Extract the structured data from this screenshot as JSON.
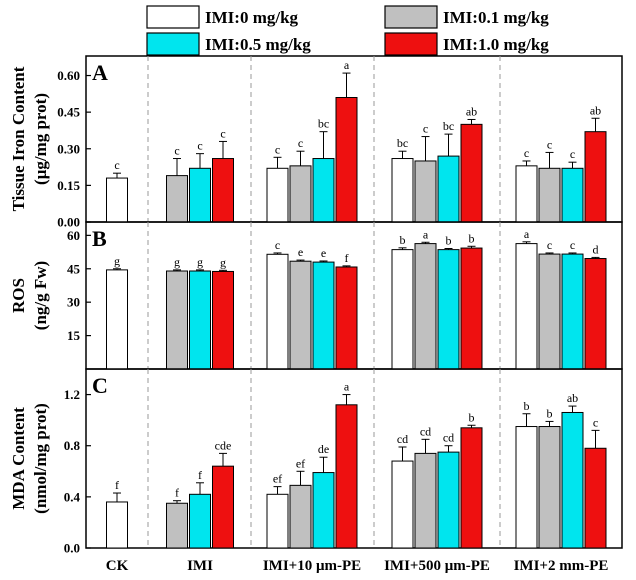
{
  "chart_data": {
    "type": "bar",
    "layout": "three vertically stacked panels sharing x-axis",
    "categories": [
      "CK",
      "IMI",
      "IMI+10 μm-PE",
      "IMI+500 μm-PE",
      "IMI+2 mm-PE"
    ],
    "legend": {
      "position": "top",
      "entries": [
        {
          "name": "IMI:0 mg/kg",
          "color": "#ffffff"
        },
        {
          "name": "IMI:0.1 mg/kg",
          "color": "#c0c0c0"
        },
        {
          "name": "IMI:0.5 mg/kg",
          "color": "#00e5ee"
        },
        {
          "name": "IMI:1.0 mg/kg",
          "color": "#ee1010"
        }
      ]
    },
    "panels": [
      {
        "label": "A",
        "ylabel_line1": "Tissue Iron Content",
        "ylabel_line2": "(μg/mg prot)",
        "ylim": [
          0,
          0.68
        ],
        "yticks": [
          "0.00",
          "0.15",
          "0.30",
          "0.45",
          "0.60"
        ],
        "ytick_values": [
          0,
          0.15,
          0.3,
          0.45,
          0.6
        ],
        "groups": [
          {
            "bars": [
              {
                "s": 0,
                "v": 0.18,
                "e": 0.02,
                "sig": "c"
              }
            ]
          },
          {
            "bars": [
              {
                "s": 1,
                "v": 0.19,
                "e": 0.07,
                "sig": "c"
              },
              {
                "s": 2,
                "v": 0.22,
                "e": 0.06,
                "sig": "c"
              },
              {
                "s": 3,
                "v": 0.26,
                "e": 0.07,
                "sig": "c"
              }
            ]
          },
          {
            "bars": [
              {
                "s": 0,
                "v": 0.22,
                "e": 0.045,
                "sig": "c"
              },
              {
                "s": 1,
                "v": 0.23,
                "e": 0.06,
                "sig": "c"
              },
              {
                "s": 2,
                "v": 0.26,
                "e": 0.11,
                "sig": "bc"
              },
              {
                "s": 3,
                "v": 0.51,
                "e": 0.1,
                "sig": "a"
              }
            ]
          },
          {
            "bars": [
              {
                "s": 0,
                "v": 0.26,
                "e": 0.03,
                "sig": "bc"
              },
              {
                "s": 1,
                "v": 0.25,
                "e": 0.1,
                "sig": "c"
              },
              {
                "s": 2,
                "v": 0.27,
                "e": 0.09,
                "sig": "bc"
              },
              {
                "s": 3,
                "v": 0.4,
                "e": 0.02,
                "sig": "ab"
              }
            ]
          },
          {
            "bars": [
              {
                "s": 0,
                "v": 0.23,
                "e": 0.02,
                "sig": "c"
              },
              {
                "s": 1,
                "v": 0.22,
                "e": 0.065,
                "sig": "c"
              },
              {
                "s": 2,
                "v": 0.22,
                "e": 0.025,
                "sig": "c"
              },
              {
                "s": 3,
                "v": 0.37,
                "e": 0.055,
                "sig": "ab"
              }
            ]
          }
        ]
      },
      {
        "label": "B",
        "ylabel_line1": "ROS",
        "ylabel_line2": "(ng/g Fw)",
        "ylim": [
          0,
          66
        ],
        "yticks": [
          "15",
          "30",
          "45",
          "60"
        ],
        "ytick_values": [
          15,
          30,
          45,
          60
        ],
        "groups": [
          {
            "bars": [
              {
                "s": 0,
                "v": 44.5,
                "e": 0.5,
                "sig": "g"
              }
            ]
          },
          {
            "bars": [
              {
                "s": 1,
                "v": 44.0,
                "e": 0.5,
                "sig": "g"
              },
              {
                "s": 2,
                "v": 44.0,
                "e": 0.5,
                "sig": "g"
              },
              {
                "s": 3,
                "v": 43.8,
                "e": 0.5,
                "sig": "g"
              }
            ]
          },
          {
            "bars": [
              {
                "s": 0,
                "v": 51.5,
                "e": 0.6,
                "sig": "c"
              },
              {
                "s": 1,
                "v": 48.4,
                "e": 0.5,
                "sig": "e"
              },
              {
                "s": 2,
                "v": 48.0,
                "e": 0.5,
                "sig": "e"
              },
              {
                "s": 3,
                "v": 45.8,
                "e": 0.5,
                "sig": "f"
              }
            ]
          },
          {
            "bars": [
              {
                "s": 0,
                "v": 53.6,
                "e": 0.8,
                "sig": "b"
              },
              {
                "s": 1,
                "v": 56.3,
                "e": 0.6,
                "sig": "a"
              },
              {
                "s": 2,
                "v": 53.6,
                "e": 0.5,
                "sig": "b"
              },
              {
                "s": 3,
                "v": 54.3,
                "e": 0.8,
                "sig": "b"
              }
            ]
          },
          {
            "bars": [
              {
                "s": 0,
                "v": 56.3,
                "e": 0.8,
                "sig": "a"
              },
              {
                "s": 1,
                "v": 51.6,
                "e": 0.5,
                "sig": "c"
              },
              {
                "s": 2,
                "v": 51.6,
                "e": 0.5,
                "sig": "c"
              },
              {
                "s": 3,
                "v": 49.6,
                "e": 0.5,
                "sig": "d"
              }
            ]
          }
        ]
      },
      {
        "label": "C",
        "ylabel_line1": "MDA Content",
        "ylabel_line2": "(nmol/mg  prot)",
        "ylim": [
          0,
          1.4
        ],
        "yticks": [
          "0.0",
          "0.4",
          "0.8",
          "1.2"
        ],
        "ytick_values": [
          0,
          0.4,
          0.8,
          1.2
        ],
        "groups": [
          {
            "bars": [
              {
                "s": 0,
                "v": 0.36,
                "e": 0.07,
                "sig": "f"
              }
            ]
          },
          {
            "bars": [
              {
                "s": 1,
                "v": 0.35,
                "e": 0.02,
                "sig": "f"
              },
              {
                "s": 2,
                "v": 0.42,
                "e": 0.09,
                "sig": "f"
              },
              {
                "s": 3,
                "v": 0.64,
                "e": 0.1,
                "sig": "cde"
              }
            ]
          },
          {
            "bars": [
              {
                "s": 0,
                "v": 0.42,
                "e": 0.06,
                "sig": "ef"
              },
              {
                "s": 1,
                "v": 0.49,
                "e": 0.11,
                "sig": "ef"
              },
              {
                "s": 2,
                "v": 0.59,
                "e": 0.12,
                "sig": "de"
              },
              {
                "s": 3,
                "v": 1.12,
                "e": 0.08,
                "sig": "a"
              }
            ]
          },
          {
            "bars": [
              {
                "s": 0,
                "v": 0.68,
                "e": 0.11,
                "sig": "cd"
              },
              {
                "s": 1,
                "v": 0.74,
                "e": 0.11,
                "sig": "cd"
              },
              {
                "s": 2,
                "v": 0.75,
                "e": 0.05,
                "sig": "cd"
              },
              {
                "s": 3,
                "v": 0.94,
                "e": 0.02,
                "sig": "b"
              }
            ]
          },
          {
            "bars": [
              {
                "s": 0,
                "v": 0.95,
                "e": 0.1,
                "sig": "b"
              },
              {
                "s": 1,
                "v": 0.95,
                "e": 0.04,
                "sig": "b"
              },
              {
                "s": 2,
                "v": 1.06,
                "e": 0.05,
                "sig": "ab"
              },
              {
                "s": 3,
                "v": 0.78,
                "e": 0.14,
                "sig": "c"
              }
            ]
          }
        ]
      }
    ]
  }
}
